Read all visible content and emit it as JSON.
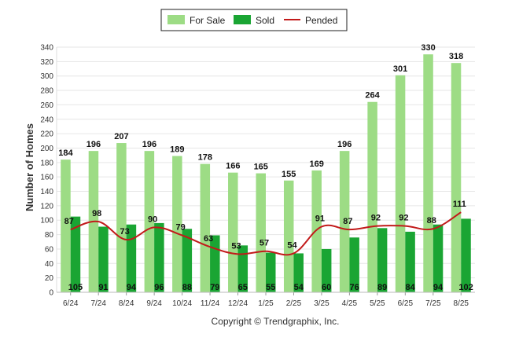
{
  "chart_data": {
    "type": "bar",
    "title": "",
    "xlabel": "",
    "ylabel": "Number of Homes",
    "ylim": [
      0,
      340
    ],
    "yticks": [
      0,
      20,
      40,
      60,
      80,
      100,
      120,
      140,
      160,
      180,
      200,
      220,
      240,
      260,
      280,
      300,
      320,
      340
    ],
    "grid": true,
    "legend_position": "top",
    "categories": [
      "6/24",
      "7/24",
      "8/24",
      "9/24",
      "10/24",
      "11/24",
      "12/24",
      "1/25",
      "2/25",
      "3/25",
      "4/25",
      "5/25",
      "6/25",
      "7/25",
      "8/25"
    ],
    "series": [
      {
        "name": "For Sale",
        "kind": "bar",
        "color": "#9ddc85",
        "values": [
          184,
          196,
          207,
          196,
          189,
          178,
          166,
          165,
          155,
          169,
          196,
          264,
          301,
          330,
          318
        ]
      },
      {
        "name": "Sold",
        "kind": "bar",
        "color": "#1aa533",
        "values": [
          105,
          91,
          94,
          96,
          88,
          79,
          65,
          55,
          54,
          60,
          76,
          89,
          84,
          94,
          102
        ]
      },
      {
        "name": "Pended",
        "kind": "line",
        "color": "#c21a1a",
        "values": [
          87,
          98,
          73,
          90,
          79,
          63,
          53,
          57,
          54,
          91,
          87,
          92,
          92,
          88,
          111
        ]
      }
    ],
    "footer": "Copyright © Trendgraphix, Inc."
  }
}
